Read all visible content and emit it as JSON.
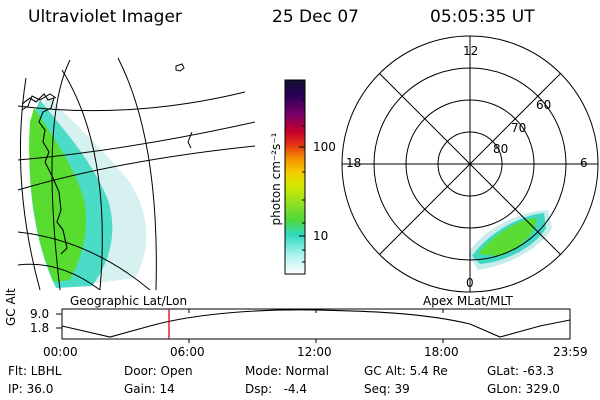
{
  "header": {
    "title": "Ultraviolet Imager",
    "date": "25 Dec 07",
    "time": "05:05:35 UT"
  },
  "geo_panel": {
    "label": "Geographic Lat/Lon"
  },
  "colorbar": {
    "unit_label": "photon cm⁻²s⁻¹",
    "scale": "log",
    "tick_labels": [
      "100",
      "10"
    ],
    "colors": [
      "#111133",
      "#2a0055",
      "#7a0066",
      "#c8002a",
      "#e53a12",
      "#f58a00",
      "#f5c800",
      "#d8e800",
      "#9be21a",
      "#4fd83a",
      "#2fd9c0",
      "#a9f2ee",
      "#ffffff"
    ]
  },
  "polar_panel": {
    "label": "Apex MLat/MLT",
    "mlt_labels": [
      "12",
      "18",
      "6",
      "0"
    ],
    "mlat_labels": [
      "60",
      "70",
      "80"
    ]
  },
  "timeline": {
    "y_axis_label": "GC Alt",
    "y_ticks": [
      "9.0",
      "1.8"
    ],
    "x_ticks": [
      "00:00",
      "06:00",
      "12:00",
      "18:00",
      "23:59"
    ],
    "marker_time": "05:05"
  },
  "info": {
    "flt": "Flt: LBHL",
    "ip": "IP: 36.0",
    "door": "Door: Open",
    "gain": "Gain: 14",
    "mode": "Mode: Normal",
    "dsp": "Dsp:   -4.4",
    "gc_alt": "GC Alt: 5.4 Re",
    "seq": "Seq: 39",
    "glat": "GLat: -63.3",
    "glon": "GLon: 329.0"
  },
  "colors": {
    "marker": "#e00000",
    "aurora_green": "#55dd30",
    "aurora_cyan": "#30d8c0",
    "aurora_pale": "#bde8e6"
  }
}
